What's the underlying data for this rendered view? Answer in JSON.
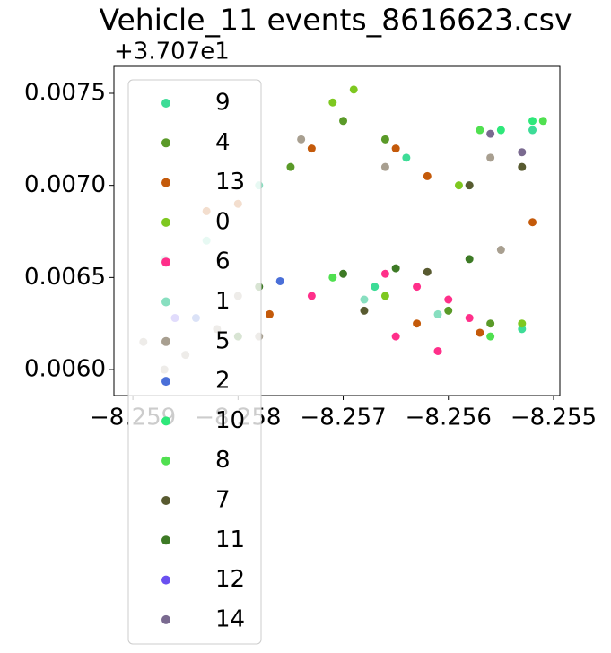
{
  "chart_data": {
    "type": "scatter",
    "title": "Vehicle_11 events_8616623.csv",
    "y_offset_label": "+3.707e1",
    "xlim": [
      -8.25918,
      -8.25494
    ],
    "ylim": [
      0.005859,
      0.007646
    ],
    "xticks": [
      {
        "value": -8.259,
        "label": "−8.259"
      },
      {
        "value": -8.258,
        "label": "−8.258"
      },
      {
        "value": -8.257,
        "label": "−8.257"
      },
      {
        "value": -8.256,
        "label": "−8.256"
      },
      {
        "value": -8.255,
        "label": "−8.255"
      }
    ],
    "yticks": [
      {
        "value": 0.006,
        "label": "0.0060"
      },
      {
        "value": 0.0065,
        "label": "0.0065"
      },
      {
        "value": 0.007,
        "label": "0.0070"
      },
      {
        "value": 0.0075,
        "label": "0.0075"
      }
    ],
    "legend": "upper left",
    "series": [
      {
        "name": "9",
        "color": "#3ddc97",
        "x": [
          -8.2564,
          -8.2558,
          -8.2552,
          -8.2553,
          -8.2567
        ],
        "y": [
          0.00715,
          0.007,
          0.0073,
          0.00622,
          0.00645
        ]
      },
      {
        "name": "4",
        "color": "#5a9a28",
        "x": [
          -8.2575,
          -8.257,
          -8.2566,
          -8.256,
          -8.2556
        ],
        "y": [
          0.0071,
          0.00735,
          0.00725,
          0.00632,
          0.00625
        ]
      },
      {
        "name": "13",
        "color": "#c45a0a",
        "x": [
          -8.2573,
          -8.2565,
          -8.2562,
          -8.2552,
          -8.2557,
          -8.2577,
          -8.2563,
          -8.2583,
          -8.258
        ],
        "y": [
          0.0072,
          0.0072,
          0.00705,
          0.0068,
          0.0062,
          0.0063,
          0.00625,
          0.00686,
          0.0069
        ]
      },
      {
        "name": "0",
        "color": "#7ec820",
        "x": [
          -8.2571,
          -8.2569,
          -8.2559,
          -8.2566,
          -8.2553
        ],
        "y": [
          0.00745,
          0.00752,
          0.007,
          0.0064,
          0.00625
        ]
      },
      {
        "name": "6",
        "color": "#ff2f8a",
        "x": [
          -8.2566,
          -8.2563,
          -8.256,
          -8.2558,
          -8.2561,
          -8.2565,
          -8.2573
        ],
        "y": [
          0.00652,
          0.00645,
          0.00638,
          0.00628,
          0.0061,
          0.00618,
          0.0064
        ]
      },
      {
        "name": "1",
        "color": "#88dfc0",
        "x": [
          -8.2587,
          -8.2583,
          -8.2578,
          -8.2568,
          -8.2561
        ],
        "y": [
          0.0066,
          0.0067,
          0.007,
          0.00638,
          0.0063
        ]
      },
      {
        "name": "5",
        "color": "#a89f90",
        "x": [
          -8.2574,
          -8.2566,
          -8.2556,
          -8.2555,
          -8.258,
          -8.2589,
          -8.2587,
          -8.2585,
          -8.2582,
          -8.2578
        ],
        "y": [
          0.00725,
          0.0071,
          0.00715,
          0.00665,
          0.0064,
          0.00615,
          0.006,
          0.00608,
          0.00622,
          0.00618
        ]
      },
      {
        "name": "2",
        "color": "#4a6fd8",
        "x": [
          -8.2584,
          -8.2576
        ],
        "y": [
          0.00628,
          0.00648
        ]
      },
      {
        "name": "10",
        "color": "#2ee87a",
        "x": [
          -8.2555,
          -8.2552
        ],
        "y": [
          0.0073,
          0.00735
        ]
      },
      {
        "name": "8",
        "color": "#50e050",
        "x": [
          -8.2557,
          -8.2551,
          -8.2556,
          -8.2571
        ],
        "y": [
          0.0073,
          0.00735,
          0.00618,
          0.0065
        ]
      },
      {
        "name": "7",
        "color": "#585a30",
        "x": [
          -8.2558,
          -8.2553,
          -8.2562,
          -8.2568
        ],
        "y": [
          0.007,
          0.0071,
          0.00653,
          0.00632
        ]
      },
      {
        "name": "11",
        "color": "#3d7a25",
        "x": [
          -8.257,
          -8.2565,
          -8.2558,
          -8.2578,
          -8.258
        ],
        "y": [
          0.00652,
          0.00655,
          0.0066,
          0.00645,
          0.00618
        ]
      },
      {
        "name": "12",
        "color": "#6a50f0",
        "x": [
          -8.2586
        ],
        "y": [
          0.00628
        ]
      },
      {
        "name": "14",
        "color": "#7a6a90",
        "x": [
          -8.2556,
          -8.2553
        ],
        "y": [
          0.00728,
          0.00718
        ]
      }
    ]
  }
}
